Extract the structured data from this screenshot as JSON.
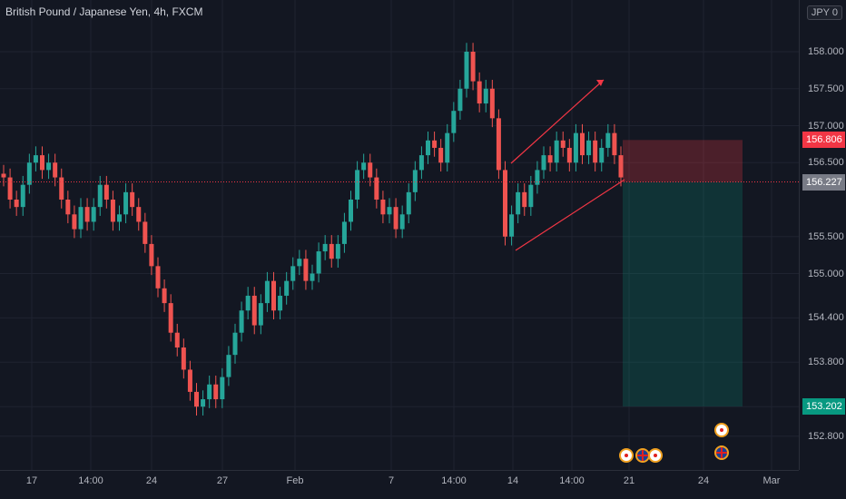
{
  "header": {
    "title": "British Pound / Japanese Yen, 4h, FXCM"
  },
  "currency_badge": "JPY 0",
  "chart_data": {
    "type": "candlestick",
    "symbol": "British Pound / Japanese Yen",
    "interval": "4h",
    "source": "FXCM",
    "x_ticks": [
      "17",
      "14:00",
      "24",
      "27",
      "Feb",
      "7",
      "14:00",
      "14",
      "14:00",
      "21",
      "24",
      "Mar"
    ],
    "y_ticks": [
      158.0,
      157.5,
      157.0,
      156.5,
      155.5,
      155.0,
      154.4,
      153.8,
      153.2,
      152.8
    ],
    "y_tick_labels": [
      "158.000",
      "157.500",
      "157.000",
      "156.500",
      "155.500",
      "155.000",
      "154.400",
      "153.800",
      "153.200",
      "152.800"
    ],
    "ylim": [
      152.4,
      158.55
    ],
    "grid": true,
    "close_series": [
      156.3,
      156.0,
      155.9,
      156.2,
      156.5,
      156.6,
      156.4,
      156.5,
      156.3,
      156.0,
      155.8,
      155.6,
      155.9,
      155.7,
      155.9,
      156.2,
      156.0,
      155.7,
      155.8,
      156.1,
      155.9,
      155.7,
      155.4,
      155.1,
      154.8,
      154.6,
      154.2,
      154.0,
      153.7,
      153.4,
      153.2,
      153.3,
      153.5,
      153.3,
      153.6,
      153.9,
      154.2,
      154.5,
      154.7,
      154.3,
      154.6,
      154.9,
      154.5,
      154.7,
      154.9,
      155.1,
      155.2,
      154.9,
      155.0,
      155.3,
      155.4,
      155.2,
      155.4,
      155.7,
      156.0,
      156.4,
      156.5,
      156.3,
      156.0,
      155.8,
      155.9,
      155.6,
      155.8,
      156.1,
      156.4,
      156.6,
      156.8,
      156.7,
      156.5,
      156.9,
      157.2,
      157.5,
      158.0,
      157.6,
      157.3,
      157.5,
      157.1,
      156.4,
      155.5,
      155.8,
      156.1,
      155.9,
      156.2,
      156.4,
      156.6,
      156.5,
      156.8,
      156.7,
      156.5,
      156.9,
      156.6,
      156.8,
      156.5,
      156.7,
      156.9,
      156.6,
      156.3
    ],
    "annotations": {
      "last_price": {
        "label": "156.239",
        "value": 156.239
      },
      "stop_loss": {
        "label": "156.806",
        "value": 156.806
      },
      "take_profit": {
        "label": "153.202",
        "value": 153.202
      },
      "bid_price": {
        "label": "156.227",
        "value": 156.227
      },
      "position": "short"
    }
  },
  "colors": {
    "up": "#26a69a",
    "down": "#ef5350",
    "background": "#131722",
    "grid": "#1f2330",
    "pattern_lines": "#f23645"
  },
  "event_icons": [
    "jp-flag",
    "uk-flag",
    "jp-flag",
    "jp-flag",
    "uk-flag"
  ]
}
